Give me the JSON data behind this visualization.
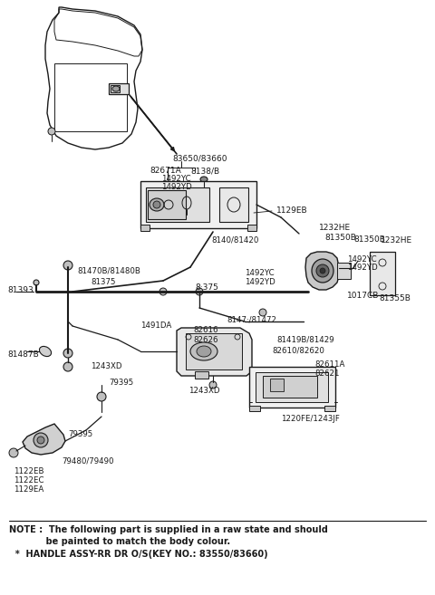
{
  "bg_color": "#ffffff",
  "lc": "#1a1a1a",
  "fig_width": 4.8,
  "fig_height": 6.57,
  "dpi": 100,
  "note_line1": "NOTE :  The following part is supplied in a raw state and should",
  "note_line2": "            be painted to match the body colour.",
  "note_line3": "  *  HANDLE ASSY-RR DR O/S(KEY NO.: 83550/83660)"
}
